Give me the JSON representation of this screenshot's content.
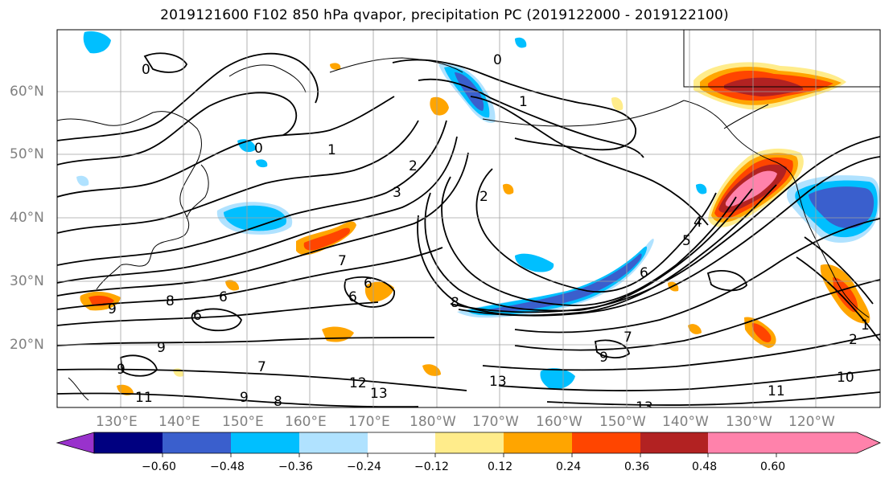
{
  "title": "2019121600 F102 850 hPa qvapor, precipitation PC (2019122000 - 2019122100)",
  "map": {
    "lat_labels": [
      "60°N",
      "50°N",
      "40°N",
      "30°N",
      "20°N"
    ],
    "lon_labels": [
      "130°E",
      "140°E",
      "150°E",
      "160°E",
      "170°E",
      "180°W",
      "170°W",
      "160°W",
      "150°W",
      "140°W",
      "130°W",
      "120°W"
    ],
    "contour_labels": [
      "0",
      "0",
      "0",
      "1",
      "1",
      "2",
      "2",
      "3",
      "4",
      "5",
      "6",
      "6",
      "6",
      "6",
      "7",
      "7",
      "7",
      "8",
      "8",
      "8",
      "9",
      "9",
      "9",
      "9",
      "10",
      "11",
      "11",
      "12",
      "13",
      "13",
      "13",
      "1",
      "2",
      "6",
      "9"
    ]
  },
  "colorbar": {
    "tick_labels": [
      "−0.60",
      "−0.48",
      "−0.36",
      "−0.24",
      "−0.12",
      "0.12",
      "0.24",
      "0.36",
      "0.48",
      "0.60"
    ],
    "colors": [
      "#9932cc",
      "#000080",
      "#3a5fcd",
      "#00bfff",
      "#b0e2ff",
      "#ffffff",
      "#ffec8b",
      "#ffa500",
      "#ff4500",
      "#b22222",
      "#ff82ab"
    ]
  }
}
